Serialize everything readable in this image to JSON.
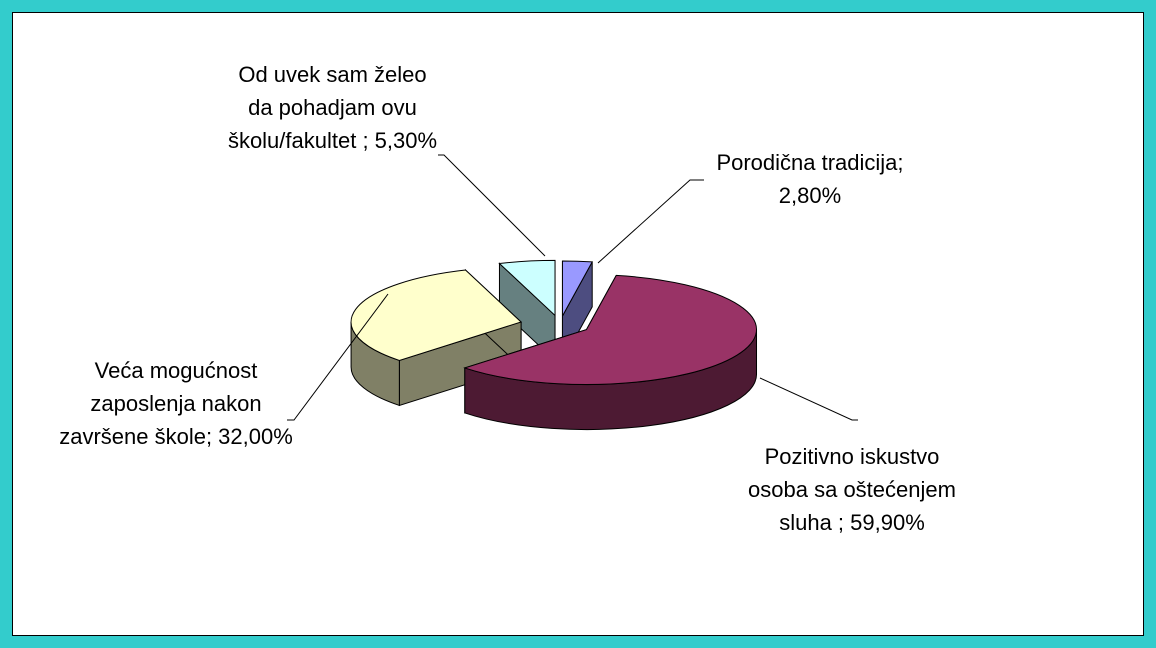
{
  "chart_data": {
    "type": "pie3d",
    "value_labels": [
      "Porodična tradicija; 2,80%",
      "Pozitivno iskustvo osoba sa oštećenjem sluha ; 59,90%",
      "Veća mogućnost zaposlenja nakon završene škole; 32,00%",
      "Od uvek sam želeo da pohadjam ovu školu/fakultet ; 5,30%"
    ],
    "values": [
      2.8,
      59.9,
      32.0,
      5.3
    ],
    "colors": [
      "#9999ff",
      "#993366",
      "#ffffcc",
      "#ccffff"
    ]
  }
}
